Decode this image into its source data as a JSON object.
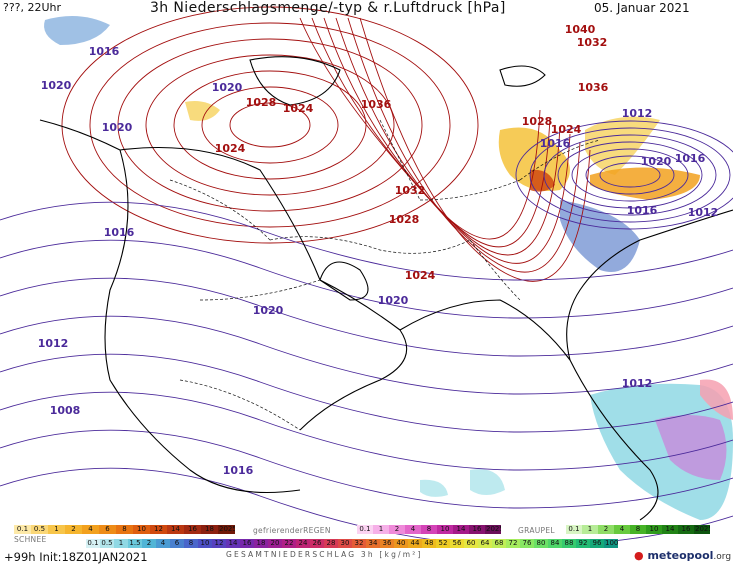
{
  "header": {
    "left": "???, 22Uhr",
    "title": "3h Niederschlagsmenge/-typ & r.Luftdruck [hPa]",
    "date": "05. Januar 2021"
  },
  "isobars": {
    "high_color": "#a30f0f",
    "low_color": "#4b2a9a",
    "labels": [
      {
        "text": "1016",
        "kind": "low"
      },
      {
        "text": "1020",
        "kind": "low"
      },
      {
        "text": "1020",
        "kind": "low"
      },
      {
        "text": "1020",
        "kind": "low"
      },
      {
        "text": "1028",
        "kind": "high"
      },
      {
        "text": "1024",
        "kind": "high"
      },
      {
        "text": "1024",
        "kind": "high"
      },
      {
        "text": "1036",
        "kind": "high"
      },
      {
        "text": "1040",
        "kind": "high"
      },
      {
        "text": "1032",
        "kind": "high"
      },
      {
        "text": "1036",
        "kind": "high"
      },
      {
        "text": "1028",
        "kind": "high"
      },
      {
        "text": "1024",
        "kind": "high"
      },
      {
        "text": "1012",
        "kind": "low"
      },
      {
        "text": "1016",
        "kind": "low"
      },
      {
        "text": "1020",
        "kind": "low"
      },
      {
        "text": "1016",
        "kind": "low"
      },
      {
        "text": "1016",
        "kind": "low"
      },
      {
        "text": "1012",
        "kind": "low"
      },
      {
        "text": "1032",
        "kind": "high"
      },
      {
        "text": "1028",
        "kind": "high"
      },
      {
        "text": "1024",
        "kind": "high"
      },
      {
        "text": "1020",
        "kind": "low"
      },
      {
        "text": "1020",
        "kind": "low"
      },
      {
        "text": "1016",
        "kind": "low"
      },
      {
        "text": "1012",
        "kind": "low"
      },
      {
        "text": "1008",
        "kind": "low"
      },
      {
        "text": "1016",
        "kind": "low"
      },
      {
        "text": "1012",
        "kind": "low"
      }
    ]
  },
  "legend": {
    "snow": {
      "label": "SCHNEE",
      "values": [
        "0.1",
        "0.5",
        "1",
        "2",
        "4",
        "6",
        "8",
        "10",
        "12",
        "14",
        "16",
        "18",
        "2025+"
      ],
      "colors": [
        "#fde9a8",
        "#fbd878",
        "#f7c54a",
        "#f5b52e",
        "#f2a11e",
        "#ee8c17",
        "#e87412",
        "#df5e10",
        "#d04a10",
        "#bb3812",
        "#a32a12",
        "#8c2010",
        "#701808"
      ]
    },
    "freezing_rain": {
      "label": "gefrierenderREGEN",
      "values": [
        "0.1",
        "1",
        "2",
        "4",
        "8",
        "10",
        "14",
        "16",
        "2025+"
      ],
      "colors": [
        "#fbd3f2",
        "#f6b0e8",
        "#ef8ad9",
        "#e366c9",
        "#d444b7",
        "#c02aa1",
        "#a51b89",
        "#86136f",
        "#6a0e58"
      ]
    },
    "graupel": {
      "label": "GRAUPEL",
      "values": [
        "0.1",
        "1",
        "2",
        "4",
        "8",
        "10",
        "14",
        "16",
        "2025+"
      ],
      "colors": [
        "#d8f5c4",
        "#b7ec98",
        "#8fdd67",
        "#68ca3e",
        "#47b327",
        "#2f9b1c",
        "#218316",
        "#166b12",
        "#0d540e"
      ]
    },
    "rain": {
      "label": "GESAMTNIEDERSCHLAG 3h [kg/m²]",
      "values": [
        "0.1",
        "0.5",
        "1",
        "1.5",
        "2",
        "4",
        "6",
        "8",
        "10",
        "12",
        "14",
        "16",
        "18",
        "20",
        "22",
        "24",
        "26",
        "28",
        "30",
        "32",
        "34",
        "36",
        "40",
        "44",
        "48",
        "52",
        "56",
        "60",
        "64",
        "68",
        "72",
        "76",
        "80",
        "84",
        "88",
        "92",
        "96",
        "100"
      ],
      "colors": [
        "#d6f1f4",
        "#b3e6ec",
        "#8fd8e4",
        "#6cc9dc",
        "#51b5d6",
        "#4a9bd3",
        "#4a80cf",
        "#4a66cb",
        "#4c4fc5",
        "#5741bf",
        "#6533b6",
        "#7729ab",
        "#8a229f",
        "#9d1f93",
        "#af2086",
        "#bf2476",
        "#cc2d66",
        "#d63a55",
        "#de4a45",
        "#e35c38",
        "#e76f2d",
        "#ea8325",
        "#ec961f",
        "#eda91c",
        "#eebb1e",
        "#eecc25",
        "#ecdb31",
        "#e6e742",
        "#d5ec4e",
        "#bfee57",
        "#a5ec5e",
        "#88e763",
        "#6be066",
        "#4fd66a",
        "#36ca6e",
        "#22bb73",
        "#15a979",
        "#0f9582"
      ]
    }
  },
  "footer": {
    "left": "+99h Init:18Z01JAN2021",
    "brand": "meteopool",
    "brand_tld": ".org"
  }
}
